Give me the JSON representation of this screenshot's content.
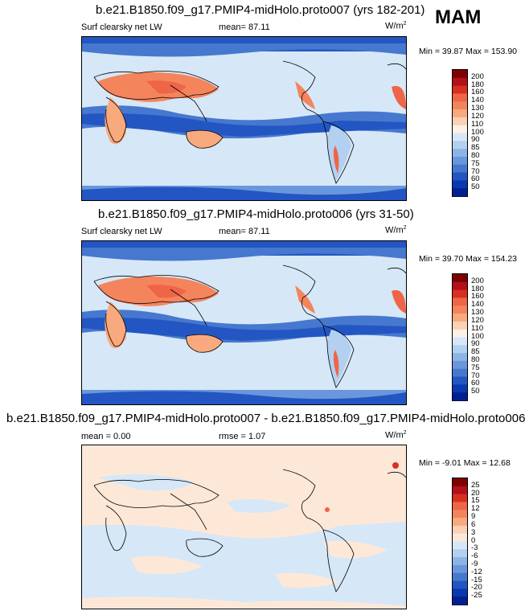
{
  "season": "MAM",
  "panels": [
    {
      "title": "b.e21.B1850.f09_g17.PMIP4-midHolo.proto007 (yrs 182-201)",
      "variable": "Surf clearsky net LW",
      "mean": "mean=  87.11",
      "units": "W/m",
      "units_sup": "2",
      "minmax": "Min =  39.87 Max = 153.90",
      "colorbar": {
        "levels": [
          "200",
          "180",
          "160",
          "140",
          "130",
          "120",
          "110",
          "100",
          "90",
          "85",
          "80",
          "75",
          "70",
          "60",
          "50"
        ],
        "colors": [
          "#7f0000",
          "#b2101a",
          "#d7301f",
          "#ef6548",
          "#f4845c",
          "#f8a97e",
          "#fbd0b4",
          "#fdf0e4",
          "#d6e7f7",
          "#b3d0f0",
          "#8db4e6",
          "#6a97dc",
          "#4678cf",
          "#2356c2",
          "#0a38b0",
          "#00208f"
        ]
      }
    },
    {
      "title": "b.e21.B1850.f09_g17.PMIP4-midHolo.proto006 (yrs 31-50)",
      "variable": "Surf clearsky net LW",
      "mean": "mean=  87.11",
      "units": "W/m",
      "units_sup": "2",
      "minmax": "Min =  39.70 Max = 154.23",
      "colorbar": {
        "levels": [
          "200",
          "180",
          "160",
          "140",
          "130",
          "120",
          "110",
          "100",
          "90",
          "85",
          "80",
          "75",
          "70",
          "60",
          "50"
        ],
        "colors": [
          "#7f0000",
          "#b2101a",
          "#d7301f",
          "#ef6548",
          "#f4845c",
          "#f8a97e",
          "#fbd0b4",
          "#fdf0e4",
          "#d6e7f7",
          "#b3d0f0",
          "#8db4e6",
          "#6a97dc",
          "#4678cf",
          "#2356c2",
          "#0a38b0",
          "#00208f"
        ]
      }
    },
    {
      "title": "b.e21.B1850.f09_g17.PMIP4-midHolo.proto007 - b.e21.B1850.f09_g17.PMIP4-midHolo.proto006",
      "mean": "mean =   0.00",
      "rmse": "rmse =   1.07",
      "units": "W/m",
      "units_sup": "2",
      "minmax": "Min =  -9.01 Max =  12.68",
      "colorbar": {
        "levels": [
          "25",
          "20",
          "15",
          "12",
          "9",
          "6",
          "3",
          "0",
          "-3",
          "-6",
          "-9",
          "-12",
          "-15",
          "-20",
          "-25"
        ],
        "colors": [
          "#7f0000",
          "#b2101a",
          "#d7301f",
          "#ef6548",
          "#f4845c",
          "#f8a97e",
          "#fbd0b4",
          "#fde8d8",
          "#d6e7f7",
          "#b3d0f0",
          "#8db4e6",
          "#6a97dc",
          "#4678cf",
          "#2356c2",
          "#0a38b0",
          "#00208f"
        ]
      }
    }
  ]
}
